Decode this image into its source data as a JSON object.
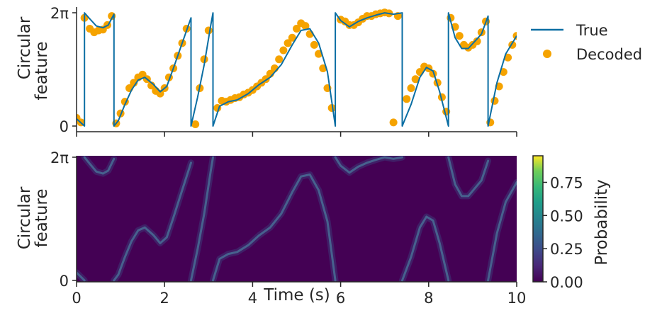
{
  "chart_data": [
    {
      "type": "line",
      "panel": "top",
      "xlim": [
        0,
        10
      ],
      "ylim_label": [
        "0",
        "2π"
      ],
      "ylabel": [
        "Circular",
        "feature"
      ],
      "legend": {
        "placement": "right",
        "entries": [
          "True",
          "Decoded"
        ]
      },
      "colors": {
        "true": "#0b6ea3",
        "decoded": "#f5a300"
      },
      "series": [
        {
          "name": "True",
          "comment_units": "y in radians",
          "x": [
            0.0,
            0.18,
            0.18,
            0.3,
            0.45,
            0.6,
            0.72,
            0.85,
            0.85,
            0.95,
            1.1,
            1.25,
            1.4,
            1.55,
            1.75,
            1.9,
            2.05,
            2.2,
            2.4,
            2.6,
            2.6,
            2.75,
            2.9,
            3.05,
            3.1,
            3.1,
            3.25,
            3.45,
            3.65,
            3.9,
            4.15,
            4.4,
            4.65,
            4.9,
            5.1,
            5.3,
            5.5,
            5.7,
            5.88,
            5.88,
            6.0,
            6.2,
            6.4,
            6.6,
            6.8,
            7.0,
            7.2,
            7.4,
            7.4,
            7.6,
            7.8,
            7.95,
            8.1,
            8.25,
            8.45,
            8.45,
            8.6,
            8.75,
            8.9,
            9.05,
            9.2,
            9.35,
            9.35,
            9.55,
            9.75,
            10.0
          ],
          "y": [
            0.4,
            0.0,
            6.28,
            5.95,
            5.55,
            5.45,
            5.6,
            6.2,
            0.0,
            0.3,
            1.2,
            2.0,
            2.55,
            2.7,
            2.3,
            1.9,
            2.2,
            3.2,
            4.6,
            6.0,
            0.0,
            1.6,
            3.4,
            5.6,
            6.28,
            0.0,
            1.1,
            1.35,
            1.45,
            1.8,
            2.3,
            2.7,
            3.4,
            4.5,
            5.3,
            5.4,
            4.6,
            3.0,
            0.0,
            6.28,
            5.85,
            5.5,
            5.8,
            6.0,
            6.15,
            6.28,
            6.2,
            6.28,
            0.0,
            1.2,
            2.7,
            3.25,
            3.05,
            1.9,
            0.0,
            6.28,
            4.9,
            4.3,
            4.3,
            4.7,
            5.1,
            6.1,
            0.0,
            2.4,
            4.0,
            5.0
          ]
        },
        {
          "name": "Decoded",
          "comment_units": "y in radians",
          "x": [
            0.0,
            0.1,
            0.18,
            0.3,
            0.4,
            0.5,
            0.6,
            0.7,
            0.8,
            0.9,
            1.0,
            1.1,
            1.2,
            1.3,
            1.4,
            1.5,
            1.6,
            1.7,
            1.8,
            1.9,
            2.0,
            2.1,
            2.2,
            2.3,
            2.4,
            2.5,
            2.7,
            2.8,
            2.9,
            3.0,
            3.2,
            3.3,
            3.4,
            3.5,
            3.6,
            3.7,
            3.8,
            3.9,
            4.0,
            4.1,
            4.2,
            4.3,
            4.4,
            4.5,
            4.6,
            4.7,
            4.8,
            4.9,
            5.0,
            5.1,
            5.2,
            5.3,
            5.4,
            5.5,
            5.6,
            5.7,
            5.8,
            6.0,
            6.1,
            6.2,
            6.3,
            6.4,
            6.5,
            6.6,
            6.7,
            6.8,
            6.9,
            7.0,
            7.1,
            7.2,
            7.3,
            7.5,
            7.6,
            7.7,
            7.8,
            7.9,
            8.0,
            8.1,
            8.2,
            8.3,
            8.4,
            8.5,
            8.6,
            8.7,
            8.8,
            8.9,
            9.0,
            9.1,
            9.2,
            9.3,
            9.4,
            9.5,
            9.6,
            9.7,
            9.8,
            9.9,
            10.0
          ],
          "y": [
            0.45,
            0.2,
            6.0,
            5.4,
            5.2,
            5.3,
            5.35,
            5.6,
            6.1,
            0.15,
            0.7,
            1.35,
            2.1,
            2.4,
            2.7,
            2.85,
            2.6,
            2.25,
            1.95,
            1.8,
            2.1,
            2.7,
            3.2,
            3.9,
            4.6,
            5.4,
            0.1,
            2.1,
            3.7,
            5.3,
            1.0,
            1.4,
            1.35,
            1.45,
            1.55,
            1.6,
            1.75,
            1.85,
            2.0,
            2.2,
            2.4,
            2.6,
            2.9,
            3.2,
            3.7,
            4.2,
            4.6,
            4.9,
            5.4,
            5.7,
            5.55,
            5.1,
            4.5,
            4.0,
            3.2,
            2.1,
            1.0,
            5.9,
            5.8,
            5.6,
            5.6,
            5.75,
            5.95,
            6.1,
            6.1,
            6.2,
            6.25,
            6.3,
            6.25,
            0.2,
            6.1,
            1.5,
            2.1,
            2.6,
            3.0,
            3.3,
            3.2,
            2.9,
            2.4,
            1.6,
            0.8,
            6.0,
            5.5,
            5.0,
            4.5,
            4.35,
            4.5,
            4.7,
            5.2,
            5.8,
            0.2,
            1.4,
            2.2,
            3.0,
            3.8,
            4.5,
            5.0
          ]
        }
      ]
    },
    {
      "type": "heatmap",
      "panel": "bottom",
      "xlabel": "Time (s)",
      "ylabel": [
        "Circular",
        "feature"
      ],
      "xlim": [
        0,
        10
      ],
      "xticks": [
        "0",
        "2",
        "4",
        "6",
        "8",
        "10"
      ],
      "ylim_label": [
        "0",
        "2π"
      ],
      "colorbar": {
        "label": "Probability",
        "ticks": [
          "0.00",
          "0.25",
          "0.50",
          "0.75"
        ],
        "range": [
          0,
          0.95
        ],
        "colormap": "viridis"
      },
      "background_color": "#440154"
    }
  ]
}
